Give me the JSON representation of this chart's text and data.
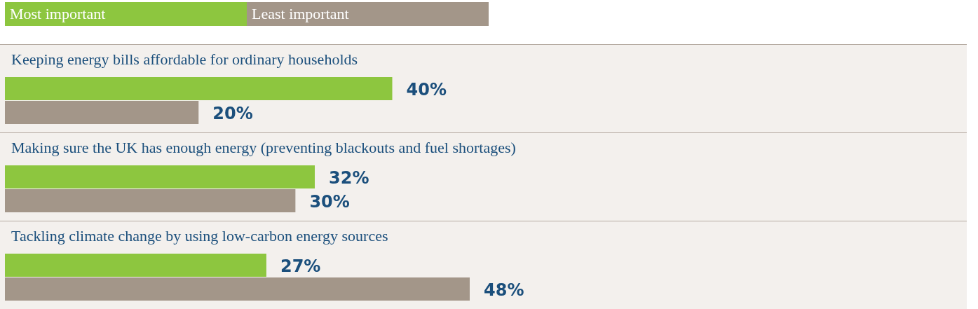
{
  "chart_data": {
    "type": "bar",
    "orientation": "horizontal",
    "legend": "top left",
    "categories": [
      "Keeping energy bills affordable for ordinary households",
      "Making sure the UK has enough energy (preventing blackouts and fuel shortages)",
      "Tackling climate change by using low-carbon energy sources"
    ],
    "series": [
      {
        "name": "Most important",
        "color": "#8dc63f",
        "values": [
          40,
          32,
          27
        ],
        "value_labels": [
          "40%",
          "32%",
          "27%"
        ]
      },
      {
        "name": "Least important",
        "color": "#a39689",
        "values": [
          20,
          30,
          48
        ],
        "value_labels": [
          "20%",
          "30%",
          "48%"
        ]
      }
    ]
  }
}
